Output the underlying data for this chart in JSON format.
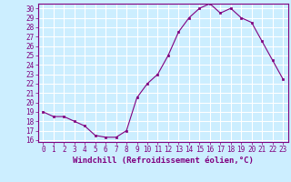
{
  "x": [
    0,
    1,
    2,
    3,
    4,
    5,
    6,
    7,
    8,
    9,
    10,
    11,
    12,
    13,
    14,
    15,
    16,
    17,
    18,
    19,
    20,
    21,
    22,
    23
  ],
  "y": [
    19.0,
    18.5,
    18.5,
    18.0,
    17.5,
    16.5,
    16.3,
    16.3,
    17.0,
    20.5,
    22.0,
    23.0,
    25.0,
    27.5,
    29.0,
    30.0,
    30.5,
    29.5,
    30.0,
    29.0,
    28.5,
    26.5,
    24.5,
    22.5
  ],
  "line_color": "#800080",
  "marker": "s",
  "marker_size": 2,
  "bg_color": "#cceeff",
  "grid_color": "#ffffff",
  "xlabel": "Windchill (Refroidissement éolien,°C)",
  "xlim": [
    -0.5,
    23.5
  ],
  "ylim": [
    15.8,
    30.5
  ],
  "yticks": [
    16,
    17,
    18,
    19,
    20,
    21,
    22,
    23,
    24,
    25,
    26,
    27,
    28,
    29,
    30
  ],
  "xticks": [
    0,
    1,
    2,
    3,
    4,
    5,
    6,
    7,
    8,
    9,
    10,
    11,
    12,
    13,
    14,
    15,
    16,
    17,
    18,
    19,
    20,
    21,
    22,
    23
  ],
  "tick_label_fontsize": 5.5,
  "xlabel_fontsize": 6.5
}
